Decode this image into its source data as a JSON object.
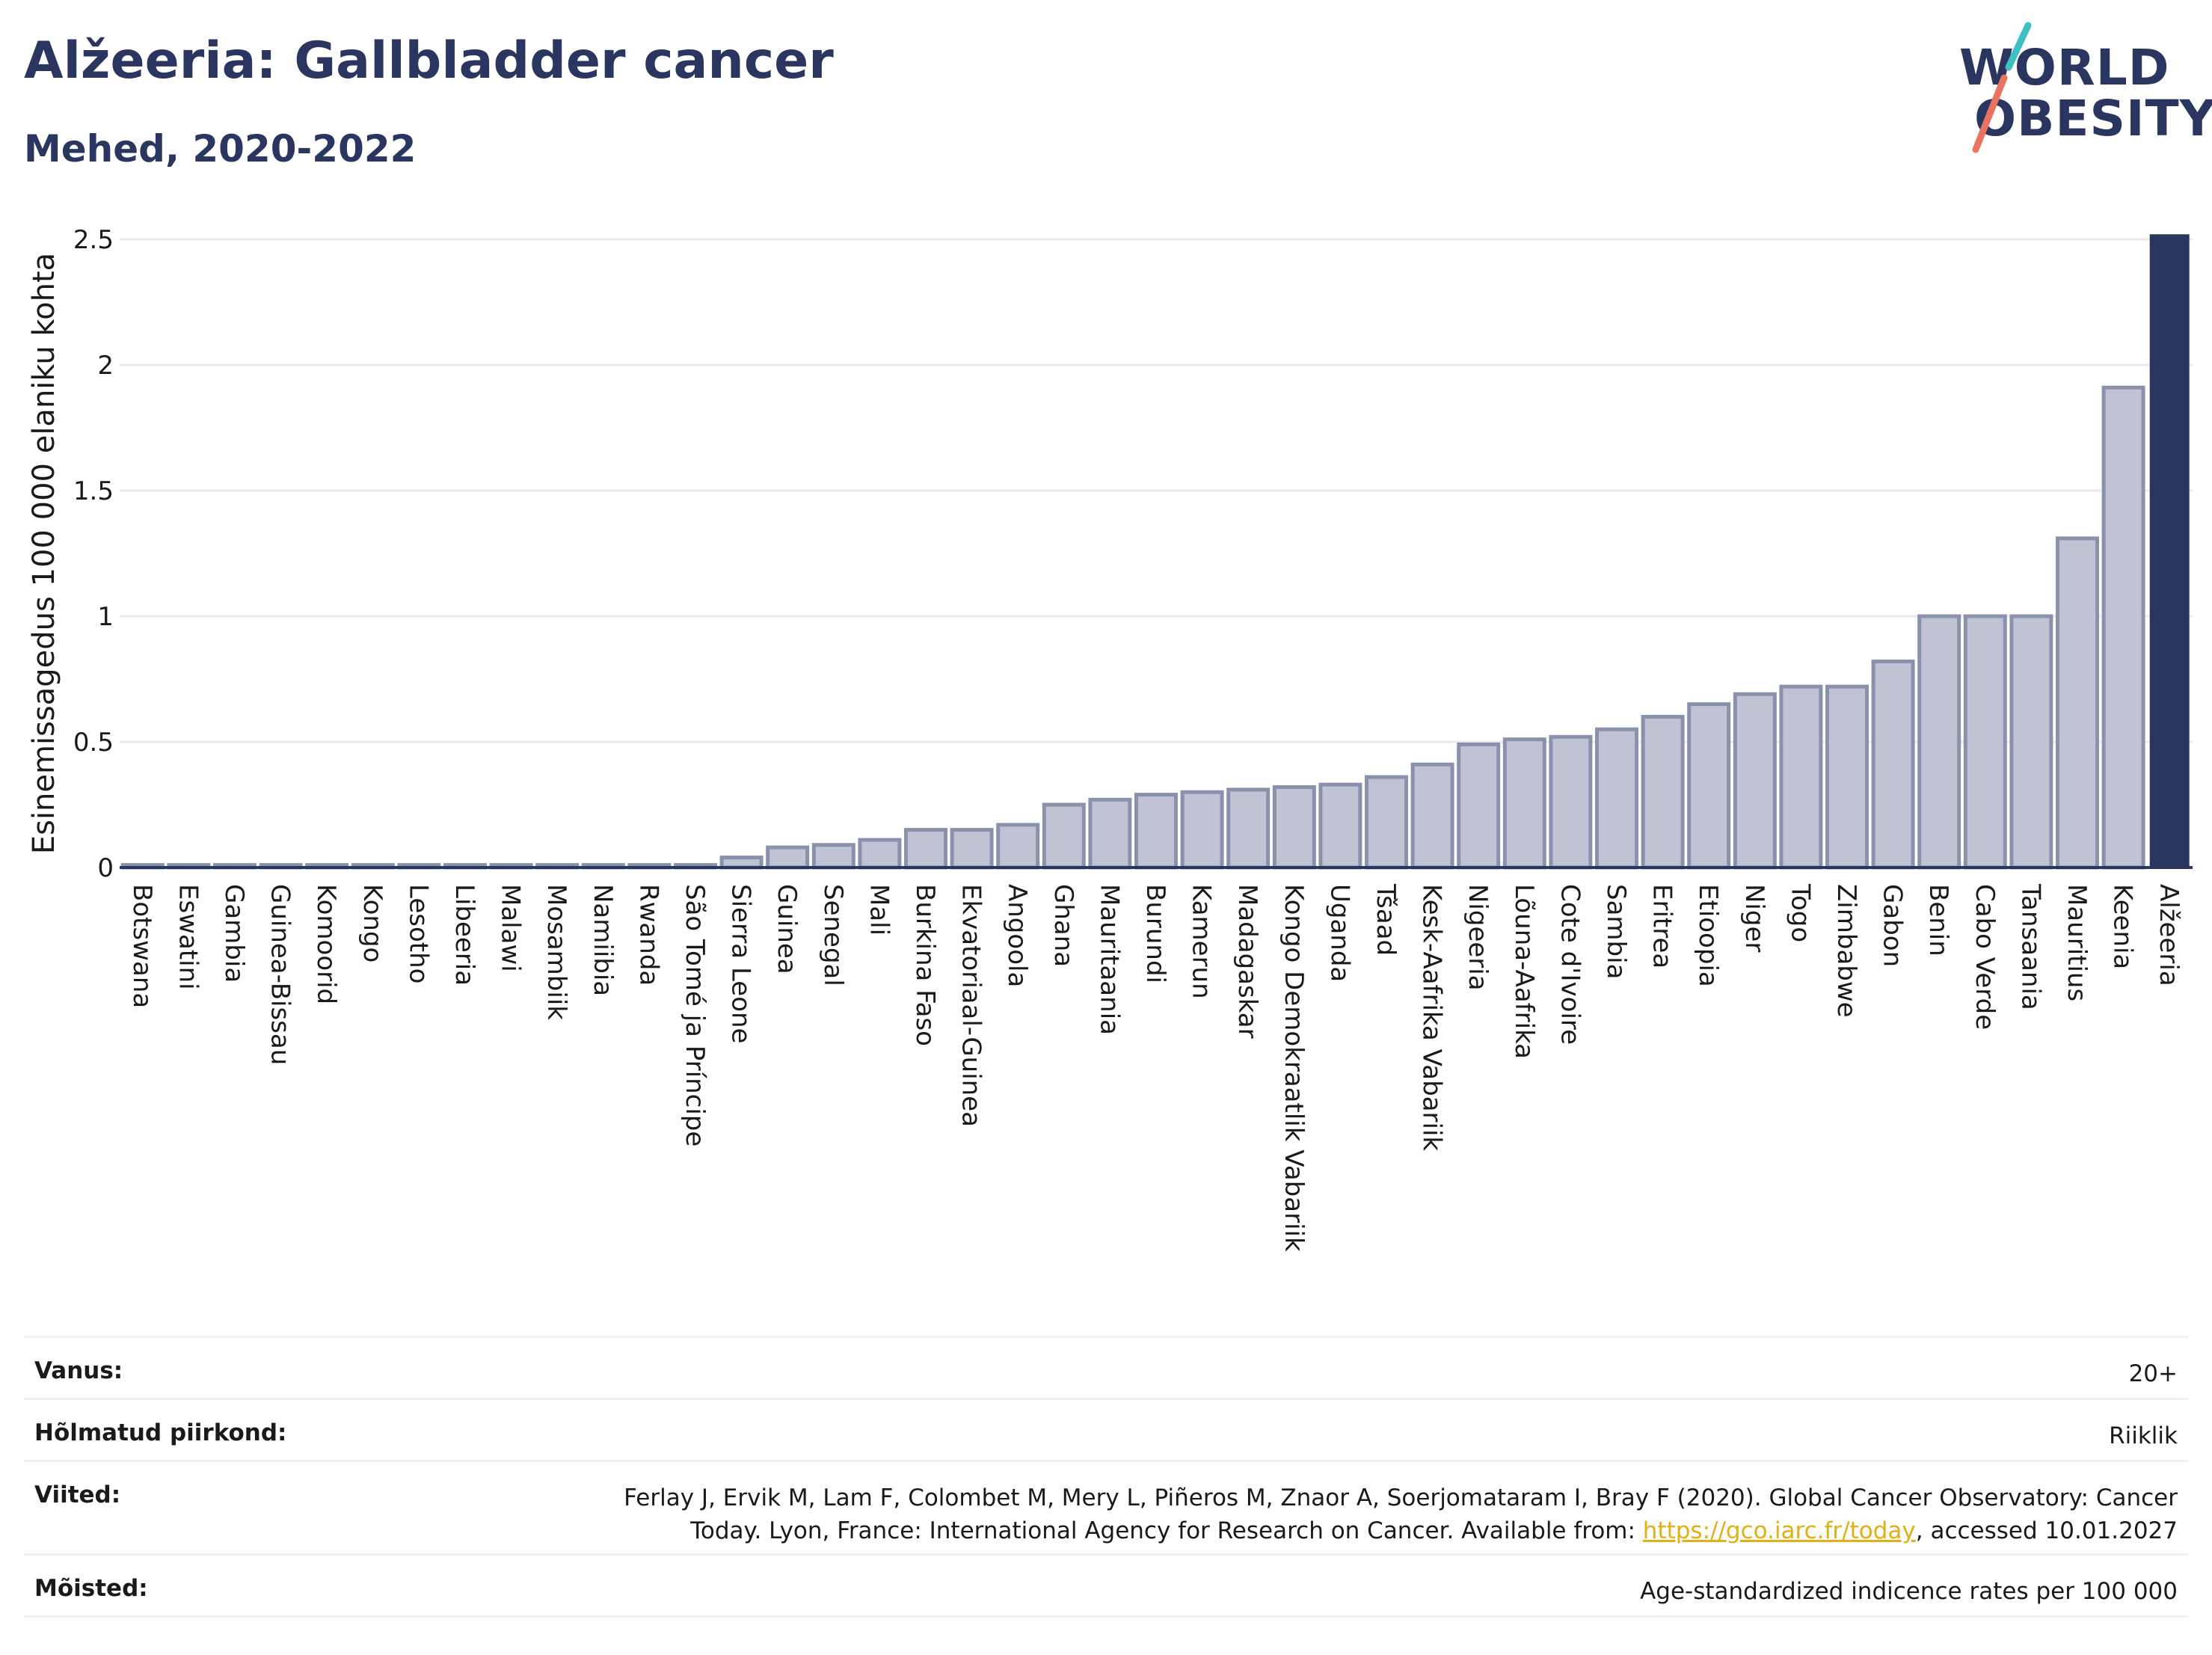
{
  "header": {
    "title": "Alžeeria: Gallbladder cancer",
    "subtitle": "Mehed, 2020-2022"
  },
  "logo": {
    "line1": "WORLD",
    "line2": "OBESITY",
    "colors": {
      "text": "#2a3560",
      "slash_top": "#3fbfc2",
      "slash_bottom": "#e8735f"
    }
  },
  "chart_data": {
    "type": "bar",
    "title": "",
    "ylabel": "Esinemissagedus 100 000 elaniku kohta",
    "xlabel": "",
    "ylim": [
      0,
      2.5
    ],
    "yticks": [
      0,
      0.5,
      1,
      1.5,
      2,
      2.5
    ],
    "ytick_labels": [
      "0",
      "0.5",
      "1",
      "1.5",
      "2",
      "2.5"
    ],
    "grid": true,
    "highlight": "Alžeeria",
    "colors": {
      "bar": "#bfc3d3",
      "bar_border": "#8a91ad",
      "highlight": "#2a3560",
      "grid": "#e8eaee",
      "axis": "#2a3560"
    },
    "categories": [
      "Botswana",
      "Eswatini",
      "Gambia",
      "Guinea-Bissau",
      "Komoorid",
      "Kongo",
      "Lesotho",
      "Libeeria",
      "Malawi",
      "Mosambiik",
      "Namiibia",
      "Rwanda",
      "São Tomé ja Príncipe",
      "Sierra Leone",
      "Guinea",
      "Senegal",
      "Mali",
      "Burkina Faso",
      "Ekvatoriaal-Guinea",
      "Angoola",
      "Ghana",
      "Mauritaania",
      "Burundi",
      "Kamerun",
      "Madagaskar",
      "Kongo Demokraatlik Vabariik",
      "Uganda",
      "Tšaad",
      "Kesk-Aafrika Vabariik",
      "Nigeeria",
      "Lõuna-Aafrika",
      "Cote d'Ivoire",
      "Sambia",
      "Eritrea",
      "Etioopia",
      "Niger",
      "Togo",
      "Zimbabwe",
      "Gabon",
      "Benin",
      "Cabo Verde",
      "Tansaania",
      "Mauritius",
      "Keenia",
      "Alžeeria"
    ],
    "values": [
      0.01,
      0.01,
      0.01,
      0.01,
      0.01,
      0.01,
      0.01,
      0.01,
      0.01,
      0.01,
      0.01,
      0.01,
      0.01,
      0.04,
      0.08,
      0.09,
      0.11,
      0.15,
      0.15,
      0.17,
      0.25,
      0.27,
      0.29,
      0.3,
      0.31,
      0.32,
      0.33,
      0.36,
      0.41,
      0.49,
      0.51,
      0.52,
      0.55,
      0.6,
      0.65,
      0.69,
      0.72,
      0.72,
      0.82,
      1.0,
      1.0,
      1.0,
      1.31,
      1.91,
      2.52
    ]
  },
  "meta": {
    "age_label": "Vanus:",
    "age_value": "20+",
    "region_label": "Hõlmatud piirkond:",
    "region_value": "Riiklik",
    "ref_label": "Viited:",
    "ref_line1": "Ferlay J, Ervik M, Lam F, Colombet M, Mery L, Piñeros M, Znaor A, Soerjomataram I, Bray F (2020). Global Cancer Observatory: Cancer",
    "ref_line2_pre": "Today. Lyon, France: International Agency for Research on Cancer. Available from: ",
    "ref_link": "https://gco.iarc.fr/today",
    "ref_line2_post": ", accessed 10.01.2027",
    "def_label": "Mõisted:",
    "def_value": "Age-standardized indicence rates per 100 000"
  }
}
